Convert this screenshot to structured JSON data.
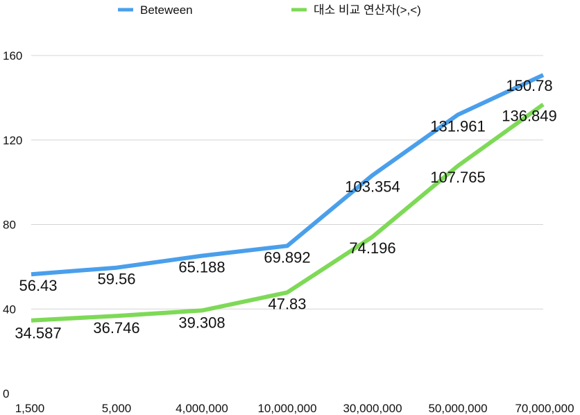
{
  "chart_data": {
    "type": "line",
    "categories": [
      "1,500",
      "5,000",
      "4,000,000",
      "10,000,000",
      "30,000,000",
      "50,000,000",
      "70,000,000"
    ],
    "series": [
      {
        "name": "Beteween",
        "color": "#4A9FEB",
        "values": [
          56.43,
          59.56,
          65.188,
          69.892,
          103.354,
          131.961,
          150.78
        ],
        "labels": [
          "56.43",
          "59.56",
          "65.188",
          "69.892",
          "103.354",
          "131.961",
          "150.78"
        ]
      },
      {
        "name": "대소 비교 연산자(>,<)",
        "color": "#7ED957",
        "values": [
          34.587,
          36.746,
          39.308,
          47.83,
          74.196,
          107.765,
          136.849
        ],
        "labels": [
          "34.587",
          "36.746",
          "39.308",
          "47.83",
          "74.196",
          "107.765",
          "136.849"
        ]
      }
    ],
    "yticks": [
      "0",
      "40",
      "80",
      "120",
      "160"
    ],
    "ylim": [
      0,
      160
    ],
    "grid": true,
    "legend": "top"
  }
}
